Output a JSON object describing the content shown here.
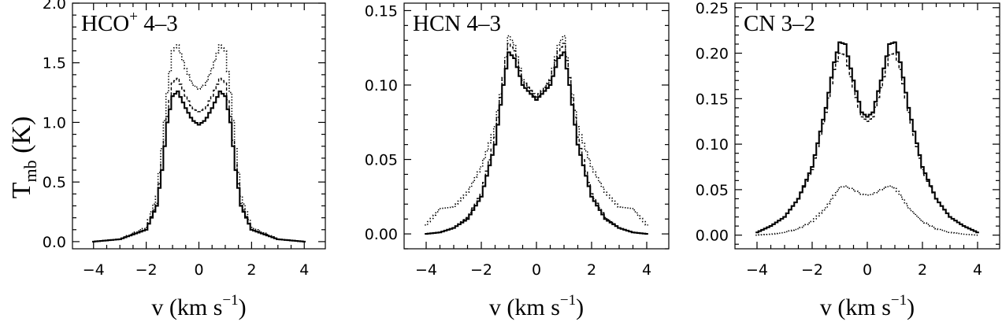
{
  "figure": {
    "ylabel_main": "T",
    "ylabel_sub": "mb",
    "ylabel_unit": " (K)"
  },
  "chart_data": [
    {
      "type": "line",
      "title": "HCO",
      "title_sup": "+",
      "title_rest": " 4–3",
      "xlabel_main": "v (km s",
      "xlabel_sup": "−1",
      "xlabel_close": ")",
      "xlim": [
        -4.8,
        4.8
      ],
      "ylim": [
        -0.06,
        2.0
      ],
      "xticks": [
        -4,
        -2,
        0,
        2,
        4
      ],
      "xtick_labels": [
        "−4",
        "−2",
        "0",
        "2",
        "4"
      ],
      "yticks": [
        0.0,
        0.5,
        1.0,
        1.5,
        2.0
      ],
      "ytick_labels": [
        "0.0",
        "0.5",
        "1.0",
        "1.5",
        "2.0"
      ],
      "step": true,
      "series": [
        {
          "style": "solid",
          "x": [
            -4,
            -3,
            -2,
            -1.6,
            -1.4,
            -1.2,
            -1.0,
            -0.8,
            -0.5,
            -0.25,
            0,
            0.25,
            0.5,
            0.8,
            1.0,
            1.2,
            1.4,
            1.6,
            2,
            3,
            4
          ],
          "y": [
            0.0,
            0.02,
            0.1,
            0.3,
            0.6,
            1.0,
            1.22,
            1.26,
            1.12,
            1.02,
            0.98,
            1.02,
            1.12,
            1.26,
            1.22,
            1.0,
            0.6,
            0.3,
            0.1,
            0.02,
            0.0
          ]
        },
        {
          "style": "dashed",
          "x": [
            -4,
            -3,
            -2,
            -1.6,
            -1.4,
            -1.2,
            -1.0,
            -0.8,
            -0.5,
            -0.25,
            0,
            0.25,
            0.5,
            0.8,
            1.0,
            1.2,
            1.4,
            1.6,
            2,
            3,
            4
          ],
          "y": [
            0.0,
            0.02,
            0.1,
            0.32,
            0.65,
            1.05,
            1.33,
            1.37,
            1.22,
            1.12,
            1.09,
            1.12,
            1.22,
            1.37,
            1.33,
            1.05,
            0.65,
            0.32,
            0.1,
            0.02,
            0.0
          ]
        },
        {
          "style": "dotted",
          "x": [
            -4,
            -3,
            -2,
            -1.6,
            -1.4,
            -1.2,
            -1.0,
            -0.8,
            -0.5,
            -0.25,
            0,
            0.25,
            0.5,
            0.8,
            1.0,
            1.2,
            1.4,
            1.6,
            2,
            3,
            4
          ],
          "y": [
            0.0,
            0.02,
            0.12,
            0.38,
            0.78,
            1.25,
            1.6,
            1.65,
            1.45,
            1.32,
            1.28,
            1.32,
            1.45,
            1.65,
            1.6,
            1.25,
            0.78,
            0.38,
            0.12,
            0.02,
            0.0
          ]
        }
      ]
    },
    {
      "type": "line",
      "title": "HCN 4–3",
      "title_sup": "",
      "title_rest": "",
      "xlabel_main": "v (km s",
      "xlabel_sup": "−1",
      "xlabel_close": ")",
      "xlim": [
        -4.8,
        4.8
      ],
      "ylim": [
        -0.01,
        0.155
      ],
      "xticks": [
        -4,
        -2,
        0,
        2,
        4
      ],
      "xtick_labels": [
        "−4",
        "−2",
        "0",
        "2",
        "4"
      ],
      "yticks": [
        0.0,
        0.05,
        0.1,
        0.15
      ],
      "ytick_labels": [
        "0.00",
        "0.05",
        "0.10",
        "0.15"
      ],
      "step": true,
      "series": [
        {
          "style": "solid",
          "x": [
            -4,
            -3.5,
            -3,
            -2.5,
            -2,
            -1.5,
            -1.2,
            -1.0,
            -0.8,
            -0.5,
            0,
            0.5,
            0.8,
            1.0,
            1.2,
            1.5,
            2,
            2.5,
            3,
            3.5,
            4
          ],
          "y": [
            0.0,
            0.001,
            0.004,
            0.01,
            0.025,
            0.06,
            0.1,
            0.122,
            0.118,
            0.1,
            0.09,
            0.1,
            0.118,
            0.122,
            0.1,
            0.06,
            0.025,
            0.01,
            0.004,
            0.001,
            0.0
          ]
        },
        {
          "style": "dashed",
          "x": [
            -4,
            -3.5,
            -3,
            -2.5,
            -2,
            -1.5,
            -1.2,
            -1.0,
            -0.8,
            -0.5,
            0,
            0.5,
            0.8,
            1.0,
            1.2,
            1.5,
            2,
            2.5,
            3,
            3.5,
            4
          ],
          "y": [
            0.0,
            0.001,
            0.004,
            0.011,
            0.027,
            0.065,
            0.105,
            0.128,
            0.123,
            0.103,
            0.092,
            0.103,
            0.123,
            0.128,
            0.105,
            0.065,
            0.027,
            0.011,
            0.004,
            0.001,
            0.0
          ]
        },
        {
          "style": "dotted",
          "x": [
            -4,
            -3.5,
            -3,
            -2.5,
            -2,
            -1.5,
            -1.2,
            -1.0,
            -0.8,
            -0.5,
            0,
            0.5,
            0.8,
            1.0,
            1.2,
            1.5,
            2,
            2.5,
            3,
            3.5,
            4
          ],
          "y": [
            0.006,
            0.017,
            0.018,
            0.028,
            0.045,
            0.072,
            0.105,
            0.133,
            0.127,
            0.104,
            0.09,
            0.104,
            0.127,
            0.133,
            0.105,
            0.072,
            0.045,
            0.028,
            0.018,
            0.017,
            0.006
          ]
        }
      ]
    },
    {
      "type": "line",
      "title": "CN 3–2",
      "title_sup": "",
      "title_rest": "",
      "xlabel_main": "v (km s",
      "xlabel_sup": "−1",
      "xlabel_close": ")",
      "xlim": [
        -4.8,
        4.8
      ],
      "ylim": [
        -0.015,
        0.255
      ],
      "xticks": [
        -4,
        -2,
        0,
        2,
        4
      ],
      "xtick_labels": [
        "−4",
        "−2",
        "0",
        "2",
        "4"
      ],
      "yticks": [
        0.0,
        0.05,
        0.1,
        0.15,
        0.2,
        0.25
      ],
      "ytick_labels": [
        "0.00",
        "0.05",
        "0.10",
        "0.15",
        "0.20",
        "0.25"
      ],
      "step": true,
      "series": [
        {
          "style": "solid",
          "x": [
            -4,
            -3.5,
            -3,
            -2.5,
            -2,
            -1.5,
            -1.2,
            -1.0,
            -0.8,
            -0.5,
            -0.2,
            0,
            0.2,
            0.5,
            0.8,
            1.0,
            1.2,
            1.5,
            2,
            2.5,
            3,
            3.5,
            4
          ],
          "y": [
            0.003,
            0.01,
            0.02,
            0.04,
            0.075,
            0.14,
            0.19,
            0.212,
            0.21,
            0.17,
            0.135,
            0.13,
            0.135,
            0.17,
            0.21,
            0.212,
            0.19,
            0.14,
            0.075,
            0.04,
            0.02,
            0.01,
            0.003
          ]
        },
        {
          "style": "dashed",
          "x": [
            -4,
            -3.5,
            -3,
            -2.5,
            -2,
            -1.5,
            -1.2,
            -1.0,
            -0.8,
            -0.5,
            -0.2,
            0,
            0.2,
            0.5,
            0.8,
            1.0,
            1.2,
            1.5,
            2,
            2.5,
            3,
            3.5,
            4
          ],
          "y": [
            0.003,
            0.01,
            0.02,
            0.04,
            0.072,
            0.135,
            0.182,
            0.2,
            0.198,
            0.162,
            0.13,
            0.125,
            0.13,
            0.162,
            0.198,
            0.2,
            0.182,
            0.135,
            0.072,
            0.04,
            0.02,
            0.01,
            0.003
          ]
        },
        {
          "style": "dotted",
          "x": [
            -4,
            -3.5,
            -3,
            -2.5,
            -2,
            -1.5,
            -1.2,
            -1.0,
            -0.8,
            -0.5,
            -0.2,
            0,
            0.2,
            0.5,
            0.8,
            1.0,
            1.2,
            1.5,
            2,
            2.5,
            3,
            3.5,
            4
          ],
          "y": [
            0.0,
            0.001,
            0.003,
            0.007,
            0.015,
            0.03,
            0.044,
            0.052,
            0.054,
            0.05,
            0.045,
            0.044,
            0.045,
            0.05,
            0.054,
            0.052,
            0.044,
            0.03,
            0.015,
            0.007,
            0.003,
            0.001,
            0.0
          ]
        }
      ]
    }
  ]
}
